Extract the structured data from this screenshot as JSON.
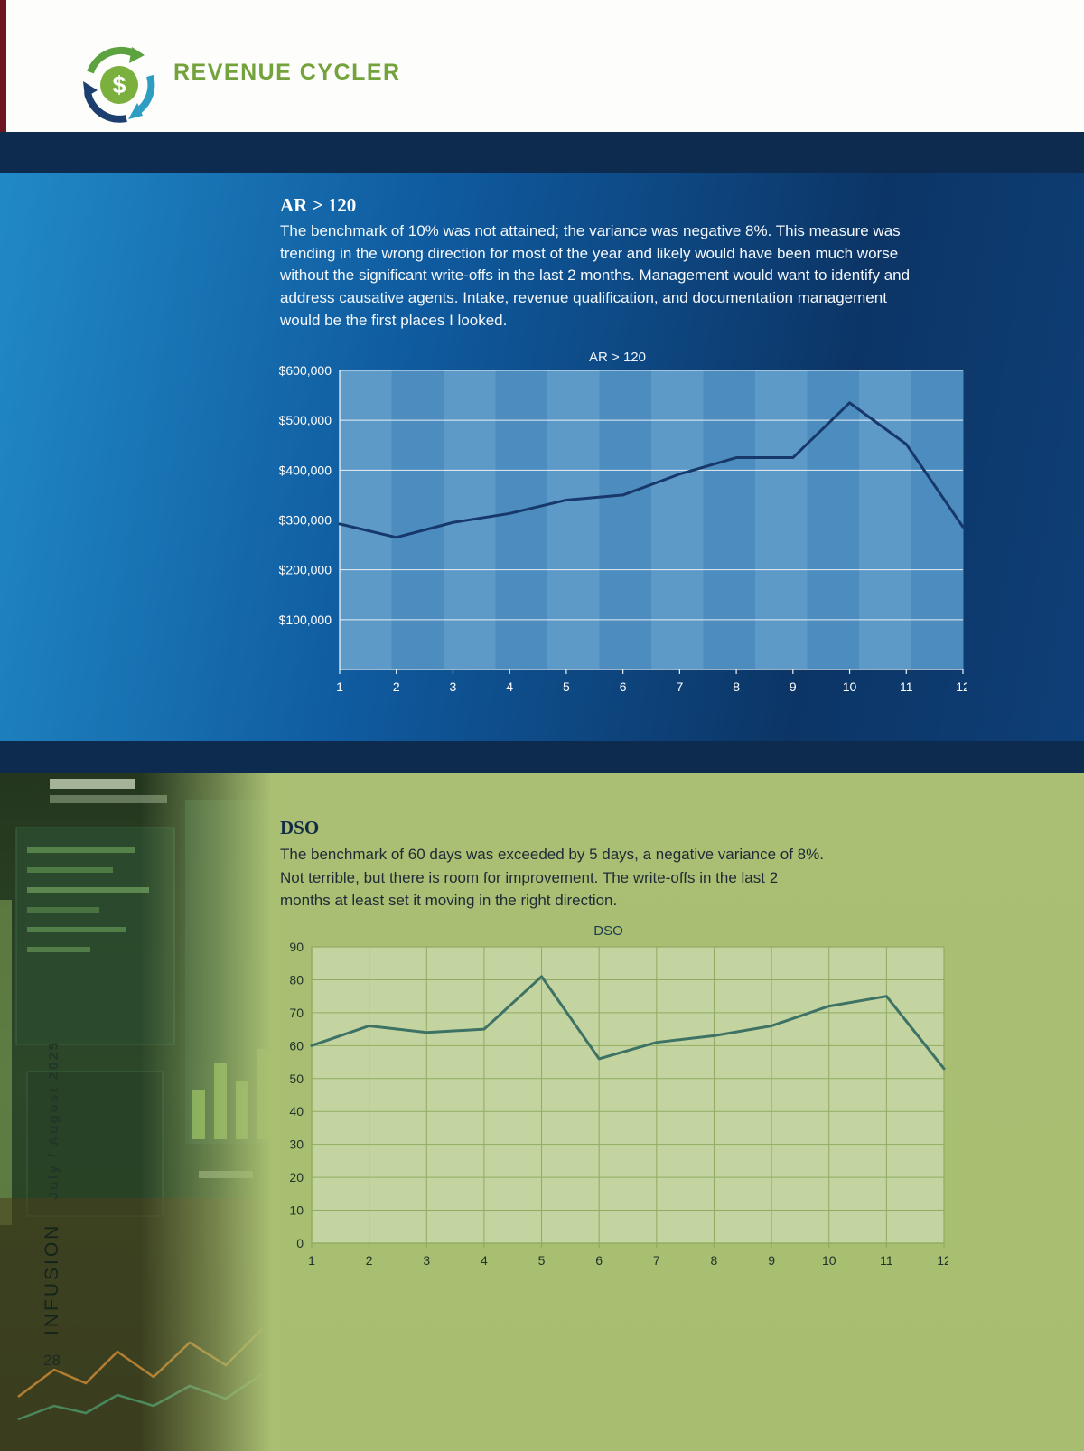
{
  "header": {
    "brand": "REVENUE CYCLER"
  },
  "colors": {
    "accent_green": "#74a23c",
    "navy": "#0d2a4f",
    "blue_bg": "#0f5a9e",
    "green_bg": "#a9bf72"
  },
  "ar_section": {
    "heading": "AR > 120",
    "body": "The benchmark of 10% was not attained; the variance was negative 8%. This measure was trending in the wrong direction for most of the year and likely would have been much worse without the significant write-offs in the last 2 months. Management would want to identify and address causative agents. Intake, revenue qualification, and documentation management would be the first places I looked."
  },
  "dso_section": {
    "heading": "DSO",
    "body": "The benchmark of 60 days was exceeded by 5 days, a negative variance of 8%. Not terrible, but there is room for improvement. The write-offs in the last 2 months at least set it moving in the right direction."
  },
  "sidebar": {
    "magazine": "INFUSION",
    "issue": "July / August 2025"
  },
  "page": {
    "number": "28"
  },
  "chart_data": [
    {
      "type": "line",
      "title": "AR > 120",
      "x": [
        "1",
        "2",
        "3",
        "4",
        "5",
        "6",
        "7",
        "8",
        "9",
        "10",
        "11",
        "12"
      ],
      "values": [
        292000,
        265000,
        295000,
        313000,
        340000,
        350000,
        392000,
        425000,
        425000,
        535000,
        452000,
        286000
      ],
      "ylim": [
        0,
        600000
      ],
      "yticks": [
        100000,
        200000,
        300000,
        400000,
        500000,
        600000
      ],
      "ytick_labels": [
        "$100,000",
        "$200,000",
        "$300,000",
        "$400,000",
        "$500,000",
        "$600,000"
      ],
      "xlabel": "",
      "ylabel": "",
      "grid": "horizontal",
      "legend": "none",
      "line_color": "#17386a",
      "background": "striped-columns"
    },
    {
      "type": "line",
      "title": "DSO",
      "x": [
        "1",
        "2",
        "3",
        "4",
        "5",
        "6",
        "7",
        "8",
        "9",
        "10",
        "11",
        "12"
      ],
      "values": [
        60,
        66,
        64,
        65,
        81,
        56,
        61,
        63,
        66,
        72,
        75,
        53
      ],
      "ylim": [
        0,
        90
      ],
      "yticks": [
        0,
        10,
        20,
        30,
        40,
        50,
        60,
        70,
        80,
        90
      ],
      "ytick_labels": [
        "0",
        "10",
        "20",
        "30",
        "40",
        "50",
        "60",
        "70",
        "80",
        "90"
      ],
      "xlabel": "",
      "ylabel": "",
      "grid": "both",
      "legend": "none",
      "line_color": "#3d7265",
      "background": "solid"
    }
  ]
}
